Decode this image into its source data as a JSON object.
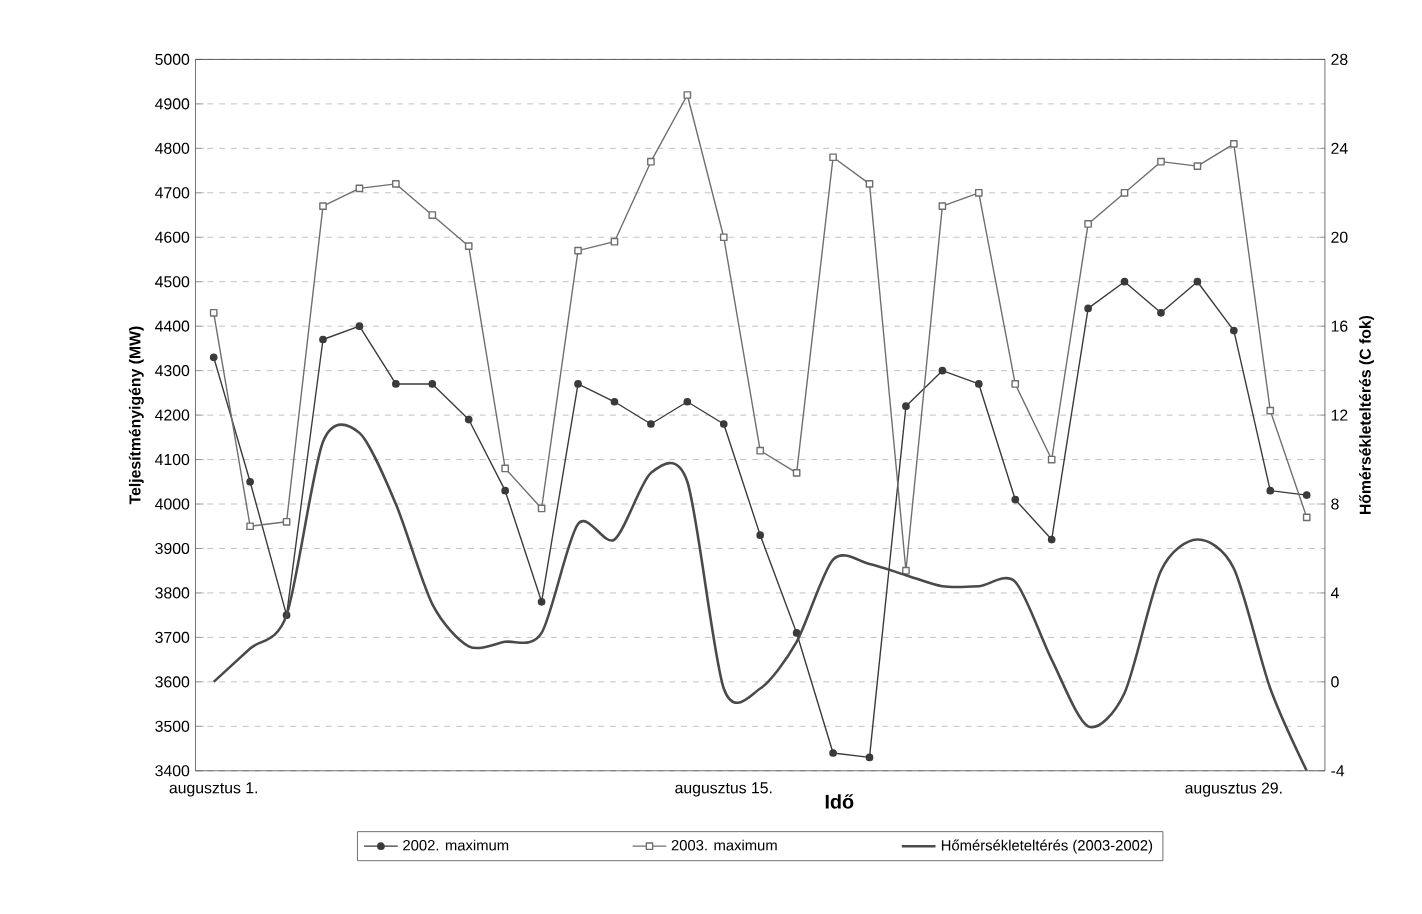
{
  "chart_data": {
    "type": "line",
    "xlabel": "Idő",
    "ylabel": "Teljesítményigény (MW)",
    "y2label": "Hőmérsékleteltérés (C fok)",
    "categories": [
      "augusztus 1.",
      null,
      null,
      null,
      null,
      null,
      null,
      null,
      null,
      null,
      null,
      null,
      null,
      null,
      "augusztus 15.",
      null,
      null,
      null,
      null,
      null,
      null,
      null,
      null,
      null,
      null,
      null,
      null,
      null,
      "augusztus 29.",
      null,
      null
    ],
    "ylim": [
      3400,
      5000
    ],
    "yticks": [
      3400,
      3500,
      3600,
      3700,
      3800,
      3900,
      4000,
      4100,
      4200,
      4300,
      4400,
      4500,
      4600,
      4700,
      4800,
      4900,
      5000
    ],
    "y2lim": [
      -4,
      28
    ],
    "y2ticks": [
      -4,
      0,
      4,
      8,
      12,
      16,
      20,
      24,
      28
    ],
    "grid": "y",
    "legend": "bottom",
    "series": [
      {
        "name": "2002. maximum",
        "color": "#3a3a3a",
        "marker": "circle",
        "line_style": "solid",
        "values": [
          4330,
          4050,
          3750,
          4370,
          4400,
          4270,
          4270,
          4190,
          4030,
          3780,
          4270,
          4230,
          4180,
          4230,
          4180,
          3930,
          3710,
          3440,
          3430,
          4220,
          4300,
          4270,
          4010,
          3920,
          4440,
          4500,
          4430,
          4500,
          4390,
          4030,
          4020
        ]
      },
      {
        "name": "2003. maximum",
        "color": "#6e6e6e",
        "marker": "square",
        "line_style": "solid",
        "values": [
          4430,
          3950,
          3960,
          4670,
          4710,
          4720,
          4650,
          4580,
          4080,
          3990,
          4570,
          4590,
          4770,
          4920,
          4600,
          4120,
          4070,
          4780,
          4720,
          3850,
          4670,
          4700,
          4270,
          4100,
          4630,
          4700,
          4770,
          4760,
          4810,
          4210,
          3970
        ]
      },
      {
        "name": "Hőmérsékleteltérés (2003-2002)",
        "color": "#4a4a4a",
        "marker": "none",
        "line_style": "solid",
        "axis": "y2",
        "values": [
          0.0,
          1.5,
          3.0,
          10.8,
          11.2,
          8.0,
          3.5,
          1.6,
          1.8,
          2.2,
          7.1,
          6.4,
          9.4,
          9.0,
          -0.3,
          -0.3,
          1.8,
          5.5,
          5.3,
          4.8,
          4.3,
          4.3,
          4.5,
          1.0,
          -2.0,
          -0.5,
          5.0,
          6.4,
          5.1,
          -0.3,
          -4.0
        ]
      }
    ]
  }
}
